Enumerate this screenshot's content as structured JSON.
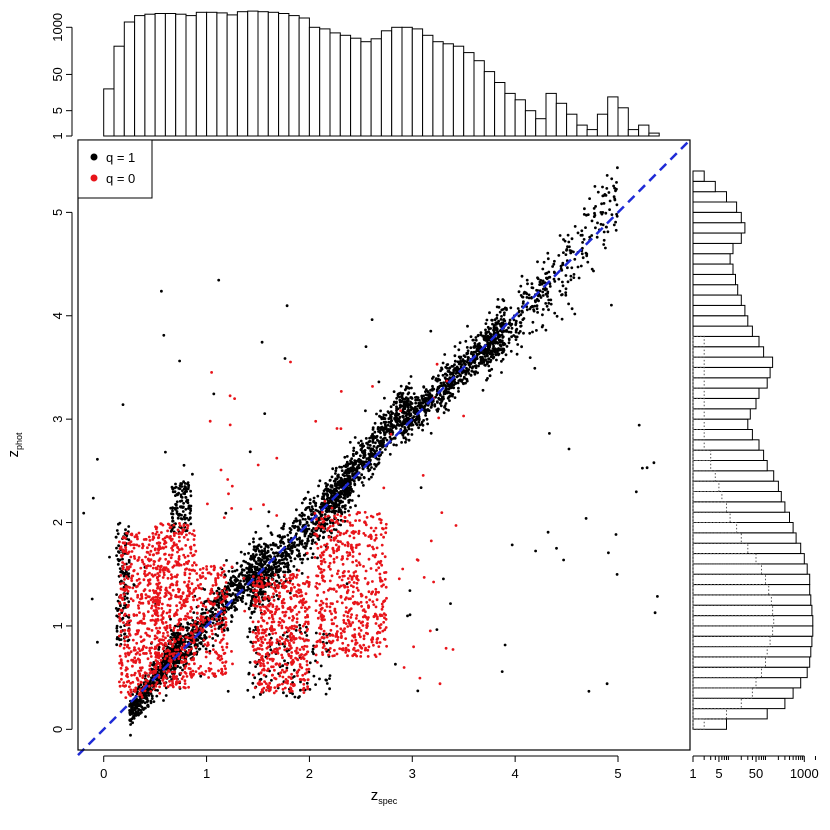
{
  "chart_data": [
    {
      "type": "scatter",
      "xlabel": "z",
      "xlabel_sub": "spec",
      "ylabel": "z",
      "ylabel_sub": "phot",
      "xlim": [
        -0.25,
        5.7
      ],
      "ylim": [
        -0.2,
        5.7
      ],
      "xticks": [
        0,
        1,
        2,
        3,
        4,
        5
      ],
      "yticks": [
        0,
        1,
        2,
        3,
        4,
        5
      ],
      "grid": false,
      "legend": {
        "placement": "top-left",
        "entries": [
          {
            "label": "q = 1",
            "color": "#000000"
          },
          {
            "label": "q = 0",
            "color": "#e8141a"
          }
        ]
      },
      "reference_line": {
        "x": [
          -0.25,
          5.7
        ],
        "y": [
          -0.25,
          5.7
        ],
        "style": "dashed",
        "color": "#1f2bd6"
      },
      "series": [
        {
          "name": "q = 1",
          "color": "#000000",
          "clusters": [
            {
              "x": [
                0.25,
                0.75
              ],
              "y": [
                0.15,
                0.85
              ],
              "rel_corr": true,
              "spread": 0.08,
              "n": 500
            },
            {
              "x": [
                0.6,
                1.6
              ],
              "y": [
                0.6,
                1.7
              ],
              "rel_corr": true,
              "spread": 0.12,
              "n": 700
            },
            {
              "x": [
                1.4,
                2.4
              ],
              "y": [
                1.3,
                2.4
              ],
              "rel_corr": true,
              "spread": 0.14,
              "n": 700
            },
            {
              "x": [
                2.2,
                3.0
              ],
              "y": [
                2.2,
                3.2
              ],
              "rel_corr": true,
              "spread": 0.12,
              "n": 600
            },
            {
              "x": [
                2.9,
                3.9
              ],
              "y": [
                2.9,
                3.9
              ],
              "rel_corr": true,
              "spread": 0.1,
              "n": 700
            },
            {
              "x": [
                3.7,
                4.4
              ],
              "y": [
                3.6,
                4.4
              ],
              "rel_corr": true,
              "spread": 0.14,
              "n": 250
            },
            {
              "x": [
                4.4,
                5.0
              ],
              "y": [
                4.3,
                5.2
              ],
              "rel_corr": true,
              "spread": 0.2,
              "n": 130
            },
            {
              "x": [
                0.12,
                0.25
              ],
              "y": [
                0.8,
                2.0
              ],
              "rel_corr": false,
              "spread": 0.0,
              "n": 120
            },
            {
              "x": [
                0.65,
                0.85
              ],
              "y": [
                1.9,
                2.4
              ],
              "rel_corr": false,
              "spread": 0.0,
              "n": 120
            },
            {
              "x": [
                1.4,
                2.2
              ],
              "y": [
                0.3,
                1.0
              ],
              "rel_corr": false,
              "spread": 0.0,
              "n": 120
            },
            {
              "x": [
                -0.2,
                5.4
              ],
              "y": [
                0.3,
                4.4
              ],
              "rel_corr": false,
              "spread": 0.0,
              "n": 90
            }
          ]
        },
        {
          "name": "q = 0",
          "color": "#e8141a",
          "clusters": [
            {
              "x": [
                0.15,
                0.55
              ],
              "y": [
                0.3,
                1.9
              ],
              "rel_corr": false,
              "spread": 0.0,
              "n": 450
            },
            {
              "x": [
                0.5,
                0.9
              ],
              "y": [
                0.4,
                2.0
              ],
              "rel_corr": false,
              "spread": 0.0,
              "n": 500
            },
            {
              "x": [
                0.9,
                1.2
              ],
              "y": [
                0.5,
                1.6
              ],
              "rel_corr": false,
              "spread": 0.0,
              "n": 180
            },
            {
              "x": [
                1.45,
                2.0
              ],
              "y": [
                0.35,
                1.5
              ],
              "rel_corr": false,
              "spread": 0.0,
              "n": 500
            },
            {
              "x": [
                2.05,
                2.75
              ],
              "y": [
                0.7,
                2.1
              ],
              "rel_corr": false,
              "spread": 0.0,
              "n": 550
            },
            {
              "x": [
                1.0,
                3.6
              ],
              "y": [
                0.3,
                3.6
              ],
              "rel_corr": false,
              "spread": 0.0,
              "n": 70
            }
          ]
        }
      ]
    },
    {
      "type": "bar",
      "orientation": "vertical",
      "scale": "log",
      "title": "",
      "yticks": [
        1,
        5,
        50,
        1000
      ],
      "ylim": [
        1,
        3000
      ],
      "bin_start": 0.0,
      "bin_width": 0.1,
      "values": [
        20,
        300,
        1400,
        2100,
        2300,
        2400,
        2400,
        2300,
        2100,
        2600,
        2600,
        2500,
        2200,
        2700,
        2800,
        2700,
        2600,
        2400,
        2100,
        1800,
        1000,
        900,
        700,
        600,
        500,
        400,
        480,
        800,
        1000,
        1000,
        900,
        600,
        400,
        350,
        300,
        200,
        120,
        60,
        30,
        15,
        10,
        5,
        3,
        15,
        8,
        4,
        2,
        1.5,
        4,
        12,
        6,
        1.5,
        2,
        1.2,
        1,
        1,
        0
      ]
    },
    {
      "type": "bar",
      "orientation": "horizontal",
      "scale": "log",
      "xticks": [
        1,
        5,
        50,
        1000
      ],
      "xlim": [
        1,
        3000
      ],
      "bin_start": 0.0,
      "bin_width": 0.1,
      "series": [
        {
          "name": "q = 1",
          "values": [
            8,
            100,
            300,
            500,
            800,
            1200,
            1400,
            1500,
            1600,
            1700,
            1700,
            1600,
            1500,
            1400,
            1400,
            1200,
            1000,
            800,
            600,
            500,
            400,
            300,
            240,
            200,
            150,
            100,
            80,
            60,
            40,
            30,
            35,
            50,
            60,
            100,
            120,
            140,
            80,
            60,
            40,
            30,
            25,
            20,
            16,
            14,
            12,
            10,
            12,
            20,
            25,
            20,
            15,
            8,
            4,
            2
          ]
        },
        {
          "name": "q = 0",
          "values": [
            2,
            8,
            20,
            40,
            50,
            70,
            90,
            100,
            120,
            140,
            150,
            140,
            130,
            110,
            90,
            70,
            50,
            30,
            20,
            15,
            10,
            8,
            6,
            5,
            4,
            3,
            3,
            2,
            2,
            2,
            2,
            2,
            2,
            2,
            2,
            2,
            2,
            2,
            1,
            1,
            1,
            1,
            1,
            1,
            1,
            1,
            1,
            1,
            1,
            1,
            1,
            1,
            1,
            1
          ]
        }
      ]
    }
  ]
}
